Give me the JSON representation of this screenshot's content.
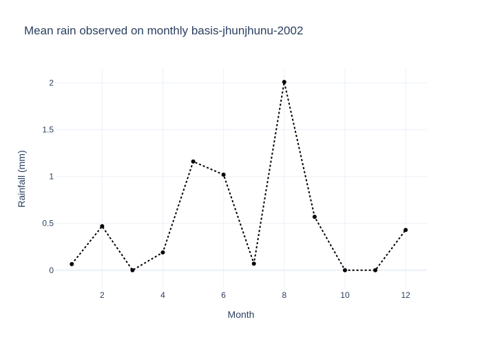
{
  "chart_data": {
    "type": "line",
    "title": "Mean rain observed on monthly basis-jhunjhunu-2002",
    "xlabel": "Month",
    "ylabel": "Rainfall (mm)",
    "x": [
      1,
      2,
      3,
      4,
      5,
      6,
      7,
      8,
      9,
      10,
      11,
      12
    ],
    "series": [
      {
        "values": [
          0.065,
          0.47,
          0.0,
          0.19,
          1.16,
          1.02,
          0.07,
          2.01,
          0.57,
          0.0,
          0.0,
          0.43
        ],
        "color": "#000000",
        "line_style": "dotted",
        "marker": "circle"
      }
    ],
    "xlim": [
      0.45,
      12.7
    ],
    "ylim": [
      -0.2,
      2.15
    ],
    "x_ticks": [
      2,
      4,
      6,
      8,
      10,
      12
    ],
    "y_ticks": [
      0,
      0.5,
      1,
      1.5,
      2
    ],
    "x_tick_labels": [
      "2",
      "4",
      "6",
      "8",
      "10",
      "12"
    ],
    "y_tick_labels": [
      "0",
      "0.5",
      "1",
      "1.5",
      "2"
    ],
    "grid": true,
    "legend": "none"
  }
}
